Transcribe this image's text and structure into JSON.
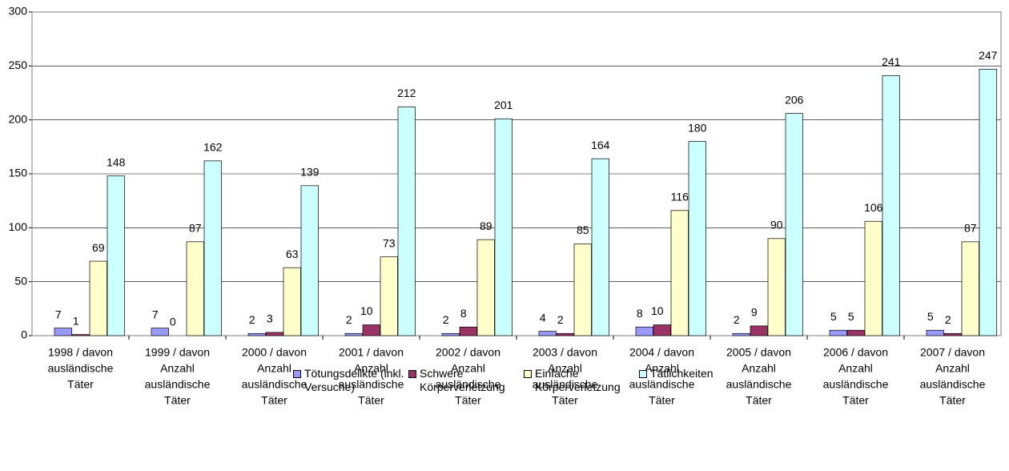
{
  "chart_data": {
    "type": "bar",
    "categories": [
      [
        "1998 / davon",
        "ausländische",
        "Täter"
      ],
      [
        "1999 / davon",
        "Anzahl",
        "ausländische",
        "Täter"
      ],
      [
        "2000 / davon",
        "Anzahl",
        "ausländische",
        "Täter"
      ],
      [
        "2001 / davon",
        "Anzahl",
        "ausländische",
        "Täter"
      ],
      [
        "2002 / davon",
        "Anzahl",
        "ausländische",
        "Täter"
      ],
      [
        "2003 / davon",
        "Anzahl",
        "ausländische",
        "Täter"
      ],
      [
        "2004 / davon",
        "Anzahl",
        "ausländische",
        "Täter"
      ],
      [
        "2005 / davon",
        "Anzahl",
        "ausländische",
        "Täter"
      ],
      [
        "2006 / davon",
        "Anzahl",
        "ausländische",
        "Täter"
      ],
      [
        "2007 / davon",
        "Anzahl",
        "ausländische",
        "Täter"
      ]
    ],
    "series": [
      {
        "name": "Tötungsdelikte (inkl. Versuche)",
        "color": "#9999ff",
        "values": [
          7,
          7,
          2,
          2,
          2,
          4,
          8,
          2,
          5,
          5
        ]
      },
      {
        "name": "Schwere Körperverletzung",
        "color": "#993366",
        "values": [
          1,
          0,
          3,
          10,
          8,
          2,
          10,
          9,
          5,
          2
        ]
      },
      {
        "name": "Einfache Körperverletzung",
        "color": "#ffffcc",
        "values": [
          69,
          87,
          63,
          73,
          89,
          85,
          116,
          90,
          106,
          87
        ]
      },
      {
        "name": "Tätlichkeiten",
        "color": "#ccffff",
        "values": [
          148,
          162,
          139,
          212,
          201,
          164,
          180,
          206,
          241,
          247
        ]
      }
    ],
    "ylim": [
      0,
      300
    ],
    "yticks": [
      0,
      50,
      100,
      150,
      200,
      250,
      300
    ],
    "grid": true,
    "legend": "bottom"
  }
}
